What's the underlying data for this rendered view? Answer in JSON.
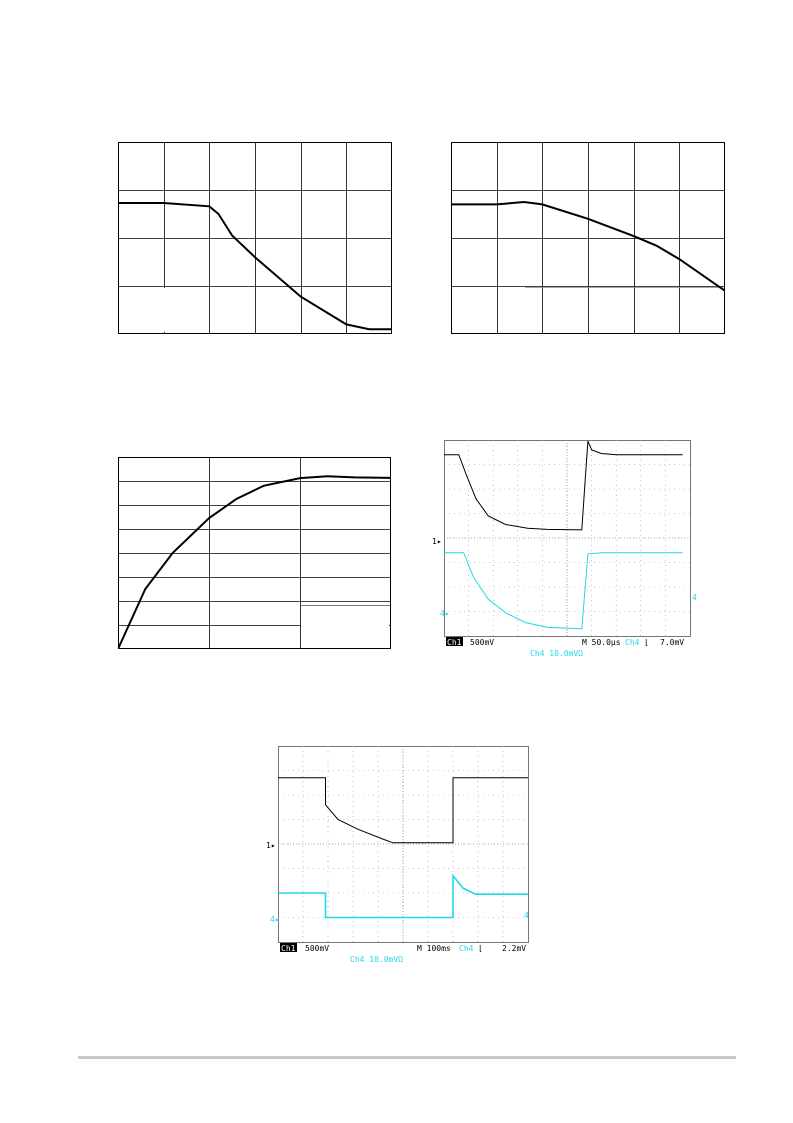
{
  "chart_data": [
    {
      "type": "line",
      "gridlines": "6 columns x 4 rows",
      "series": [
        {
          "points": [
            [
              0,
              2.73
            ],
            [
              1,
              2.73
            ],
            [
              2,
              2.66
            ],
            [
              2.2,
              2.5
            ],
            [
              2.5,
              2.05
            ],
            [
              3,
              1.6
            ],
            [
              4,
              0.78
            ],
            [
              5,
              0.2
            ],
            [
              5.5,
              0.1
            ],
            [
              6,
              0.1
            ]
          ]
        }
      ],
      "xlim": [
        0,
        6
      ],
      "ylim": [
        0,
        4
      ]
    },
    {
      "type": "line",
      "gridlines": "6 columns x 4 rows",
      "series": [
        {
          "points": [
            [
              0,
              2.7
            ],
            [
              1,
              2.7
            ],
            [
              1.6,
              2.75
            ],
            [
              2,
              2.7
            ],
            [
              3,
              2.4
            ],
            [
              4,
              2.04
            ],
            [
              4.5,
              1.84
            ],
            [
              5,
              1.56
            ],
            [
              6,
              0.9
            ]
          ]
        }
      ],
      "xlim": [
        0,
        6
      ],
      "ylim": [
        0,
        4
      ]
    },
    {
      "type": "line",
      "gridlines": "3 columns x 8 rows",
      "series": [
        {
          "points": [
            [
              0,
              0
            ],
            [
              0.3,
              2.5
            ],
            [
              0.6,
              4.0
            ],
            [
              1,
              5.45
            ],
            [
              1.3,
              6.25
            ],
            [
              1.6,
              6.8
            ],
            [
              2,
              7.12
            ],
            [
              2.3,
              7.2
            ],
            [
              2.6,
              7.15
            ],
            [
              3,
              7.13
            ]
          ]
        }
      ],
      "xlim": [
        0,
        3
      ],
      "ylim": [
        0,
        8
      ]
    },
    {
      "type": "line",
      "source": "oscilloscope",
      "labels": {
        "ch1_tag": "Ch1",
        "ch1_scale": "500mV",
        "timebase": "M 50.0µs",
        "trig_src": "Ch4",
        "trig_edge": "⌊",
        "trig_level": "7.0mV",
        "ch4_scale": "Ch4  10.0mVΩ",
        "ch1_marker": "1▸",
        "ch4_marker": "4▸",
        "ch4_right_marker": "4"
      },
      "series": [
        {
          "name": "Ch1",
          "color": "#000000",
          "points": [
            [
              0,
              3.4
            ],
            [
              0.6,
              3.4
            ],
            [
              0.9,
              2.6
            ],
            [
              1.3,
              1.6
            ],
            [
              1.8,
              0.9
            ],
            [
              2.5,
              0.55
            ],
            [
              3.4,
              0.4
            ],
            [
              4.2,
              0.35
            ],
            [
              5.6,
              0.33
            ],
            [
              5.75,
              2.5
            ],
            [
              5.85,
              3.95
            ],
            [
              6.0,
              3.6
            ],
            [
              6.4,
              3.45
            ],
            [
              7,
              3.4
            ],
            [
              9.7,
              3.4
            ]
          ]
        },
        {
          "name": "Ch4",
          "color": "#22d8e8",
          "points": [
            [
              0,
              3.4
            ],
            [
              0.8,
              3.4
            ],
            [
              1.2,
              2.4
            ],
            [
              1.8,
              1.5
            ],
            [
              2.5,
              0.95
            ],
            [
              3.3,
              0.55
            ],
            [
              4.2,
              0.35
            ],
            [
              5.6,
              0.3
            ],
            [
              5.85,
              3.35
            ],
            [
              6.4,
              3.4
            ],
            [
              9.7,
              3.4
            ]
          ]
        }
      ],
      "xlim": [
        0,
        10
      ],
      "ylim": [
        0,
        8
      ]
    },
    {
      "type": "line",
      "source": "oscilloscope",
      "labels": {
        "ch1_tag": "Ch1",
        "ch1_scale": "500mV",
        "timebase": "M 100ms",
        "trig_src": "Ch4",
        "trig_edge": "⌊",
        "trig_level": "2.2mV",
        "ch4_scale": "Ch4  10.0mVΩ",
        "ch1_marker": "1▸",
        "ch4_marker": "4▸",
        "ch4_right_marker": "4"
      },
      "series": [
        {
          "name": "Ch1",
          "color": "#000000",
          "points": [
            [
              0,
              2.7
            ],
            [
              1.9,
              2.7
            ],
            [
              1.9,
              1.6
            ],
            [
              2.4,
              1.0
            ],
            [
              3.2,
              0.6
            ],
            [
              4.2,
              0.2
            ],
            [
              4.6,
              0.05
            ],
            [
              6.0,
              0.05
            ],
            [
              7.0,
              0.05
            ],
            [
              7.0,
              2.7
            ],
            [
              10,
              2.7
            ]
          ]
        },
        {
          "name": "Ch4",
          "color": "#22d8e8",
          "points": [
            [
              0,
              2.0
            ],
            [
              1.9,
              2.0
            ],
            [
              1.9,
              1.0
            ],
            [
              7.0,
              1.0
            ],
            [
              7.0,
              2.7
            ],
            [
              7.4,
              2.2
            ],
            [
              7.9,
              1.95
            ],
            [
              8.6,
              1.95
            ],
            [
              10,
              1.95
            ]
          ]
        }
      ],
      "xlim": [
        0,
        10
      ],
      "ylim": [
        0,
        4
      ]
    }
  ]
}
